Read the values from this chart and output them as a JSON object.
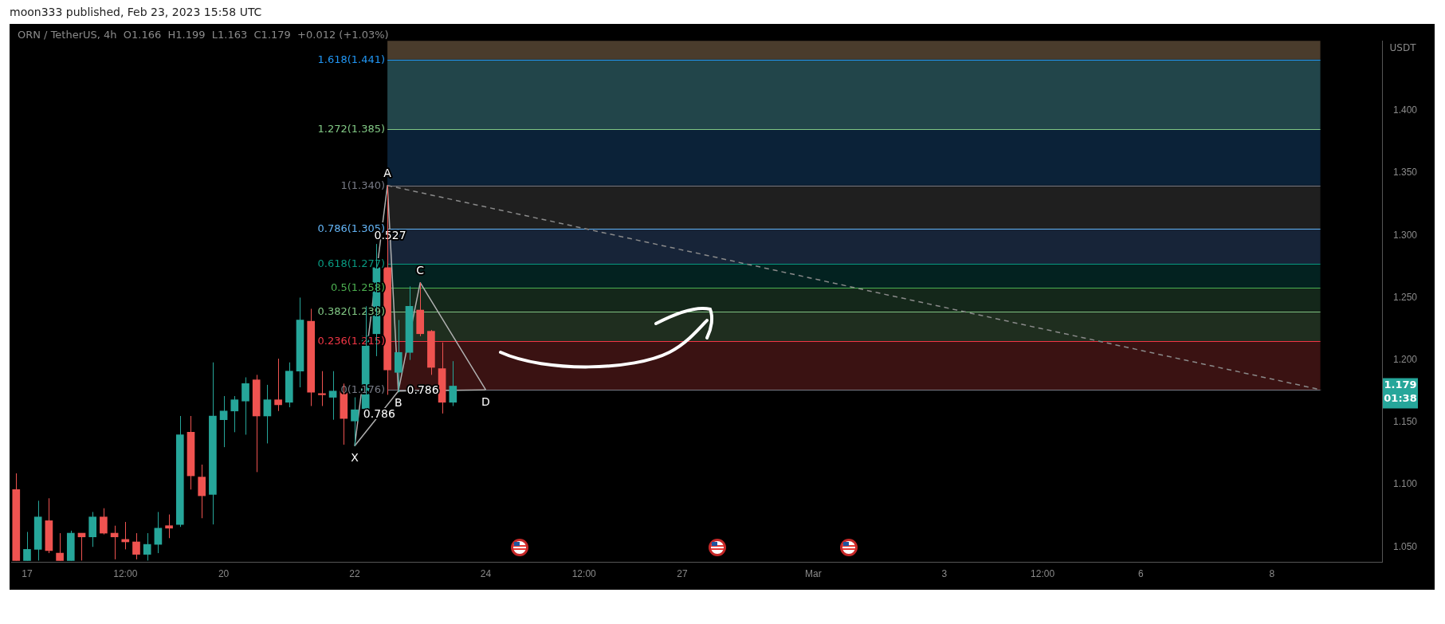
{
  "chart_data": {
    "type": "candlestick",
    "title": "moon333 published, Feb 23, 2023 15:58 UTC",
    "subtitle": "ORN / TetherUS, 4h  O1.166  H1.199  L1.163  C1.179  +0.012 (+1.03%)",
    "ylabel": "USDT",
    "x": [
      "2023-02-16T20:00",
      "2023-02-17T00:00",
      "2023-02-17T04:00",
      "2023-02-17T08:00",
      "2023-02-17T12:00",
      "2023-02-17T16:00",
      "2023-02-17T20:00",
      "2023-02-18T00:00",
      "2023-02-18T04:00",
      "2023-02-18T08:00",
      "2023-02-18T12:00",
      "2023-02-18T16:00",
      "2023-02-18T20:00",
      "2023-02-19T00:00",
      "2023-02-19T04:00",
      "2023-02-19T08:00",
      "2023-02-19T12:00",
      "2023-02-19T16:00",
      "2023-02-19T20:00",
      "2023-02-20T00:00",
      "2023-02-20T04:00",
      "2023-02-20T08:00",
      "2023-02-20T12:00",
      "2023-02-20T16:00",
      "2023-02-20T20:00",
      "2023-02-21T00:00",
      "2023-02-21T04:00",
      "2023-02-21T08:00",
      "2023-02-21T12:00",
      "2023-02-21T16:00",
      "2023-02-21T20:00",
      "2023-02-22T00:00",
      "2023-02-22T04:00",
      "2023-02-22T08:00",
      "2023-02-22T12:00",
      "2023-02-22T16:00",
      "2023-02-22T20:00",
      "2023-02-23T00:00",
      "2023-02-23T04:00",
      "2023-02-23T08:00",
      "2023-02-23T12:00"
    ],
    "ohlc": [
      [
        1.096,
        1.109,
        1.039,
        1.039
      ],
      [
        1.039,
        1.062,
        1.039,
        1.048
      ],
      [
        1.048,
        1.087,
        1.039,
        1.074
      ],
      [
        1.071,
        1.089,
        1.045,
        1.047
      ],
      [
        1.045,
        1.061,
        1.039,
        1.039
      ],
      [
        1.039,
        1.063,
        1.039,
        1.061
      ],
      [
        1.061,
        1.061,
        1.039,
        1.058
      ],
      [
        1.058,
        1.078,
        1.05,
        1.074
      ],
      [
        1.074,
        1.081,
        1.06,
        1.061
      ],
      [
        1.061,
        1.067,
        1.04,
        1.058
      ],
      [
        1.056,
        1.07,
        1.048,
        1.054
      ],
      [
        1.054,
        1.061,
        1.04,
        1.044
      ],
      [
        1.044,
        1.061,
        1.039,
        1.052
      ],
      [
        1.052,
        1.078,
        1.045,
        1.065
      ],
      [
        1.067,
        1.076,
        1.057,
        1.065
      ],
      [
        1.068,
        1.155,
        1.066,
        1.14
      ],
      [
        1.142,
        1.155,
        1.096,
        1.107
      ],
      [
        1.106,
        1.116,
        1.073,
        1.091
      ],
      [
        1.092,
        1.198,
        1.068,
        1.155
      ],
      [
        1.152,
        1.171,
        1.13,
        1.159
      ],
      [
        1.159,
        1.171,
        1.142,
        1.168
      ],
      [
        1.167,
        1.186,
        1.14,
        1.181
      ],
      [
        1.184,
        1.188,
        1.11,
        1.155
      ],
      [
        1.155,
        1.18,
        1.133,
        1.168
      ],
      [
        1.168,
        1.201,
        1.159,
        1.164
      ],
      [
        1.166,
        1.198,
        1.162,
        1.191
      ],
      [
        1.191,
        1.25,
        1.178,
        1.232
      ],
      [
        1.231,
        1.241,
        1.163,
        1.174
      ],
      [
        1.173,
        1.191,
        1.163,
        1.172
      ],
      [
        1.17,
        1.191,
        1.152,
        1.175
      ],
      [
        1.175,
        1.181,
        1.132,
        1.153
      ],
      [
        1.151,
        1.17,
        1.131,
        1.16
      ],
      [
        1.161,
        1.243,
        1.161,
        1.219
      ],
      [
        1.221,
        1.293,
        1.203,
        1.274
      ],
      [
        1.274,
        1.34,
        1.172,
        1.192
      ],
      [
        1.19,
        1.232,
        1.174,
        1.206
      ],
      [
        1.206,
        1.259,
        1.2,
        1.243
      ],
      [
        1.24,
        1.262,
        1.219,
        1.221
      ],
      [
        1.223,
        1.224,
        1.188,
        1.194
      ],
      [
        1.193,
        1.214,
        1.157,
        1.166
      ],
      [
        1.166,
        1.199,
        1.163,
        1.179
      ]
    ],
    "colors": [
      "#ef5350",
      "#26a69a",
      "#26a69a",
      "#ef5350",
      "#ef5350",
      "#26a69a",
      "#ef5350",
      "#26a69a",
      "#ef5350",
      "#ef5350",
      "#ef5350",
      "#ef5350",
      "#26a69a",
      "#26a69a",
      "#ef5350",
      "#26a69a",
      "#ef5350",
      "#ef5350",
      "#26a69a",
      "#26a69a",
      "#26a69a",
      "#26a69a",
      "#ef5350",
      "#26a69a",
      "#ef5350",
      "#26a69a",
      "#26a69a",
      "#ef5350",
      "#ef5350",
      "#26a69a",
      "#ef5350",
      "#26a69a",
      "#26a69a",
      "#26a69a",
      "#ef5350",
      "#26a69a",
      "#26a69a",
      "#ef5350",
      "#ef5350",
      "#ef5350",
      "#26a69a"
    ],
    "series": [
      {
        "type": "line",
        "color": "#b0b0b0",
        "marker": "none",
        "line_style": "solid",
        "x": [
          "2023-02-22T00:00",
          "2023-02-22T12:00",
          "2023-02-22T16:00",
          "2023-02-23T00:00",
          "2023-02-24T00:00"
        ],
        "values": [
          1.131,
          1.34,
          1.175,
          1.262,
          1.176
        ]
      },
      {
        "type": "line",
        "color": "#b0b0b0",
        "marker": "none",
        "line_style": "solid",
        "x": [
          "2023-02-22T00:00",
          "2023-02-22T16:00",
          "2023-02-24T00:00"
        ],
        "values": [
          1.131,
          1.175,
          1.176
        ]
      },
      {
        "type": "line",
        "color": "#8a8a8a",
        "marker": "none",
        "line_style": "dashed",
        "x": [
          "2023-02-22T12:00",
          "2023-03-08T18:00"
        ],
        "values": [
          1.34,
          1.176
        ]
      }
    ],
    "bands": [
      {
        "axis": "y",
        "from": 1.441,
        "to": 1.456,
        "color": "#4a3c2c"
      },
      {
        "axis": "y",
        "from": 1.385,
        "to": 1.441,
        "color": "#22454a"
      },
      {
        "axis": "y",
        "from": 1.34,
        "to": 1.385,
        "color": "#0b2238"
      },
      {
        "axis": "y",
        "from": 1.305,
        "to": 1.34,
        "color": "#1f1f1f"
      },
      {
        "axis": "y",
        "from": 1.277,
        "to": 1.305,
        "color": "#172438"
      },
      {
        "axis": "y",
        "from": 1.258,
        "to": 1.277,
        "color": "#032220"
      },
      {
        "axis": "y",
        "from": 1.239,
        "to": 1.258,
        "color": "#14271a"
      },
      {
        "axis": "y",
        "from": 1.215,
        "to": 1.239,
        "color": "#1f2e1f"
      },
      {
        "axis": "y",
        "from": 1.176,
        "to": 1.215,
        "color": "#3a1212"
      }
    ],
    "ref_lines": [
      {
        "axis": "y",
        "value": 1.441,
        "label": "1.618(1.441)",
        "color": "#2196f3"
      },
      {
        "axis": "y",
        "value": 1.385,
        "label": "1.272(1.385)",
        "color": "#81c784"
      },
      {
        "axis": "y",
        "value": 1.34,
        "label": "1(1.340)",
        "color": "#787b86"
      },
      {
        "axis": "y",
        "value": 1.305,
        "label": "0.786(1.305)",
        "color": "#64b5f6"
      },
      {
        "axis": "y",
        "value": 1.277,
        "label": "0.618(1.277)",
        "color": "#089981"
      },
      {
        "axis": "y",
        "value": 1.258,
        "label": "0.5(1.258)",
        "color": "#4caf50"
      },
      {
        "axis": "y",
        "value": 1.239,
        "label": "0.382(1.239)",
        "color": "#81c784"
      },
      {
        "axis": "y",
        "value": 1.215,
        "label": "0.236(1.215)",
        "color": "#f23645"
      },
      {
        "axis": "y",
        "value": 1.176,
        "label": "0(1.176)",
        "color": "#787b86"
      }
    ],
    "annotations": [
      {
        "text": "X",
        "x": "2023-02-22T00:00",
        "y": 1.131
      },
      {
        "text": "A",
        "x": "2023-02-22T12:00",
        "y": 1.34
      },
      {
        "text": "B",
        "x": "2023-02-22T16:00",
        "y": 1.175
      },
      {
        "text": "C",
        "x": "2023-02-23T00:00",
        "y": 1.262
      },
      {
        "text": "D",
        "x": "2023-02-24T00:00",
        "y": 1.176
      },
      {
        "text": "0.527",
        "x": "2023-02-22T13:00",
        "y": 1.299
      },
      {
        "text": "0.786",
        "x": "2023-02-22T09:00",
        "y": 1.156
      },
      {
        "text": "0.786",
        "x": "2023-02-23T01:00",
        "y": 1.175
      },
      "1.179",
      "01:38"
    ],
    "xlim": [
      "2023-02-16T18:10",
      "2023-03-09T16:20"
    ],
    "xticks": [
      {
        "value": "2023-02-17",
        "label": "17"
      },
      {
        "value": "2023-02-18T12:00",
        "label": "12:00"
      },
      {
        "value": "2023-02-20",
        "label": "20"
      },
      {
        "value": "2023-02-22",
        "label": "22"
      },
      {
        "value": "2023-02-24",
        "label": "24"
      },
      {
        "value": "2023-02-25T12:00",
        "label": "12:00"
      },
      {
        "value": "2023-02-27",
        "label": "27"
      },
      {
        "value": "2023-03-01",
        "label": "Mar"
      },
      {
        "value": "2023-03-03",
        "label": "3"
      },
      {
        "value": "2023-03-04T12:00",
        "label": "12:00"
      },
      {
        "value": "2023-03-06",
        "label": "6"
      },
      {
        "value": "2023-03-08",
        "label": "8"
      }
    ],
    "ylim": [
      1.038,
      1.456
    ],
    "yticks": [
      {
        "value": 1.05,
        "label": "1.050"
      },
      {
        "value": 1.1,
        "label": "1.100"
      },
      {
        "value": 1.15,
        "label": "1.150"
      },
      {
        "value": 1.2,
        "label": "1.200"
      },
      {
        "value": 1.25,
        "label": "1.250"
      },
      {
        "value": 1.3,
        "label": "1.300"
      },
      {
        "value": 1.35,
        "label": "1.350"
      },
      {
        "value": 1.4,
        "label": "1.400"
      }
    ],
    "grid": false,
    "legend": false
  }
}
